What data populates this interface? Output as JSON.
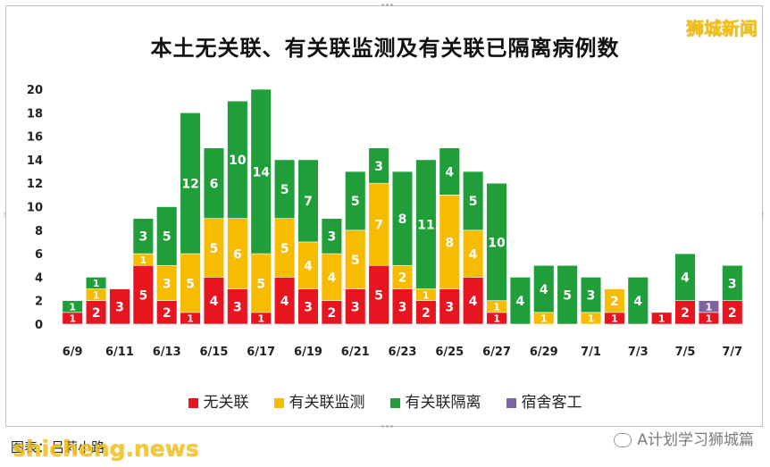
{
  "watermark_top": "狮城新闻",
  "watermark_bottom": "shicheng.news",
  "caption_left": "图表：吕莉小路",
  "wechat_label": "A计划学习狮城篇",
  "legend_colors": [
    "#e8141f",
    "#f7bb00",
    "#1f9e3a",
    "#8064a2"
  ],
  "chart_data": {
    "type": "bar",
    "stacked": true,
    "title": "本土无关联、有关联监测及有关联已隔离病例数",
    "categories": [
      "6/9",
      "6/10",
      "6/11",
      "6/12",
      "6/13",
      "6/14",
      "6/15",
      "6/16",
      "6/17",
      "6/18",
      "6/19",
      "6/20",
      "6/21",
      "6/22",
      "6/23",
      "6/24",
      "6/25",
      "6/26",
      "6/27",
      "6/28",
      "6/29",
      "6/30",
      "7/1",
      "7/2",
      "7/3",
      "7/4",
      "7/5",
      "7/6",
      "7/7"
    ],
    "tick_labels": [
      "6/9",
      "",
      "6/11",
      "",
      "6/13",
      "",
      "6/15",
      "",
      "6/17",
      "",
      "6/19",
      "",
      "6/21",
      "",
      "6/23",
      "",
      "6/25",
      "",
      "6/27",
      "",
      "6/29",
      "",
      "7/1",
      "",
      "7/3",
      "",
      "7/5",
      "",
      "7/7"
    ],
    "ylim": [
      0,
      20
    ],
    "yticks": [
      0,
      2,
      4,
      6,
      8,
      10,
      12,
      14,
      16,
      18,
      20
    ],
    "grid": false,
    "legend_position": "bottom",
    "series": [
      {
        "name": "无关联",
        "color": "#e8141f",
        "values": [
          1,
          2,
          3,
          5,
          2,
          1,
          4,
          3,
          1,
          4,
          3,
          2,
          3,
          5,
          3,
          2,
          3,
          4,
          1,
          0,
          0,
          0,
          0,
          1,
          0,
          1,
          2,
          1,
          2
        ]
      },
      {
        "name": "有关联监测",
        "color": "#f7bb00",
        "values": [
          0,
          1,
          0,
          1,
          3,
          5,
          5,
          6,
          5,
          5,
          4,
          4,
          5,
          7,
          2,
          1,
          8,
          4,
          1,
          0,
          1,
          0,
          1,
          2,
          0,
          0,
          0,
          0,
          0
        ]
      },
      {
        "name": "有关联隔离",
        "color": "#1f9e3a",
        "values": [
          1,
          1,
          0,
          3,
          5,
          12,
          6,
          10,
          14,
          5,
          7,
          3,
          5,
          3,
          8,
          11,
          4,
          5,
          10,
          4,
          4,
          5,
          3,
          0,
          4,
          0,
          4,
          0,
          3
        ]
      },
      {
        "name": "宿舍客工",
        "color": "#8064a2",
        "values": [
          0,
          0,
          0,
          0,
          0,
          0,
          0,
          0,
          0,
          0,
          0,
          0,
          0,
          0,
          0,
          0,
          0,
          0,
          0,
          0,
          0,
          0,
          0,
          0,
          0,
          0,
          0,
          1,
          0
        ]
      }
    ]
  }
}
